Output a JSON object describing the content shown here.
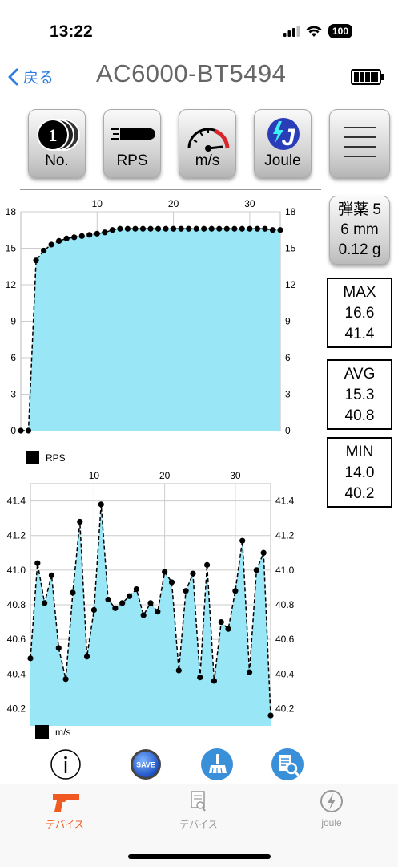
{
  "status": {
    "time": "13:22",
    "battery": "100"
  },
  "nav": {
    "back": "戻る",
    "title": "AC6000-BT5494"
  },
  "toolbar": {
    "no": "No.",
    "rps": "RPS",
    "ms": "m/s",
    "joule": "Joule"
  },
  "ammo": {
    "line1": "弾薬 5",
    "line2": "6 mm",
    "line3": "0.12 g"
  },
  "stats": {
    "max": {
      "label": "MAX",
      "rps": "16.6",
      "ms": "41.4"
    },
    "avg": {
      "label": "AVG",
      "rps": "15.3",
      "ms": "40.8"
    },
    "min": {
      "label": "MIN",
      "rps": "14.0",
      "ms": "40.2"
    }
  },
  "actions": {
    "save": "SAVE"
  },
  "tabs": [
    {
      "label": "デバイス",
      "active": true
    },
    {
      "label": "デバイス",
      "active": false
    },
    {
      "label": "joule",
      "active": false
    }
  ],
  "colors": {
    "fill": "#99e6f7",
    "accent": "#f05a22",
    "link": "#2f7de1"
  },
  "chart_data": [
    {
      "type": "area",
      "legend": "RPS",
      "x_ticks": [
        10,
        20,
        30
      ],
      "y_ticks": [
        0,
        3,
        6,
        9,
        12,
        15,
        18
      ],
      "ylim": [
        0,
        18
      ],
      "xlim": [
        0,
        34
      ],
      "x": [
        0,
        1,
        2,
        3,
        4,
        5,
        6,
        7,
        8,
        9,
        10,
        11,
        12,
        13,
        14,
        15,
        16,
        17,
        18,
        19,
        20,
        21,
        22,
        23,
        24,
        25,
        26,
        27,
        28,
        29,
        30,
        31,
        32,
        33,
        34
      ],
      "values": [
        0,
        0,
        14.0,
        14.8,
        15.3,
        15.6,
        15.8,
        15.9,
        16.0,
        16.1,
        16.2,
        16.3,
        16.5,
        16.6,
        16.6,
        16.6,
        16.6,
        16.6,
        16.6,
        16.6,
        16.6,
        16.6,
        16.6,
        16.6,
        16.6,
        16.6,
        16.6,
        16.6,
        16.6,
        16.6,
        16.6,
        16.6,
        16.6,
        16.5,
        16.5
      ]
    },
    {
      "type": "area",
      "legend": "m/s",
      "x_ticks": [
        10,
        20,
        30
      ],
      "y_ticks": [
        40.2,
        40.4,
        40.6,
        40.8,
        41.0,
        41.2,
        41.4
      ],
      "y_tick_labels": [
        "40.2",
        "40.4",
        "40.6",
        "40.8",
        "41.0",
        "41.2",
        "41.4"
      ],
      "ylim": [
        40.1,
        41.5
      ],
      "xlim": [
        1,
        35
      ],
      "x": [
        1,
        2,
        3,
        4,
        5,
        6,
        7,
        8,
        9,
        10,
        11,
        12,
        13,
        14,
        15,
        16,
        17,
        18,
        19,
        20,
        21,
        22,
        23,
        24,
        25,
        26,
        27,
        28,
        29,
        30,
        31,
        32,
        33,
        34,
        35
      ],
      "values": [
        40.49,
        41.04,
        40.81,
        40.97,
        40.55,
        40.37,
        40.87,
        41.28,
        40.5,
        40.77,
        41.38,
        40.83,
        40.78,
        40.81,
        40.85,
        40.89,
        40.74,
        40.81,
        40.76,
        40.99,
        40.93,
        40.42,
        40.88,
        40.98,
        40.38,
        41.03,
        40.36,
        40.7,
        40.66,
        40.88,
        41.17,
        40.41,
        41.0,
        41.1,
        40.16
      ]
    }
  ]
}
